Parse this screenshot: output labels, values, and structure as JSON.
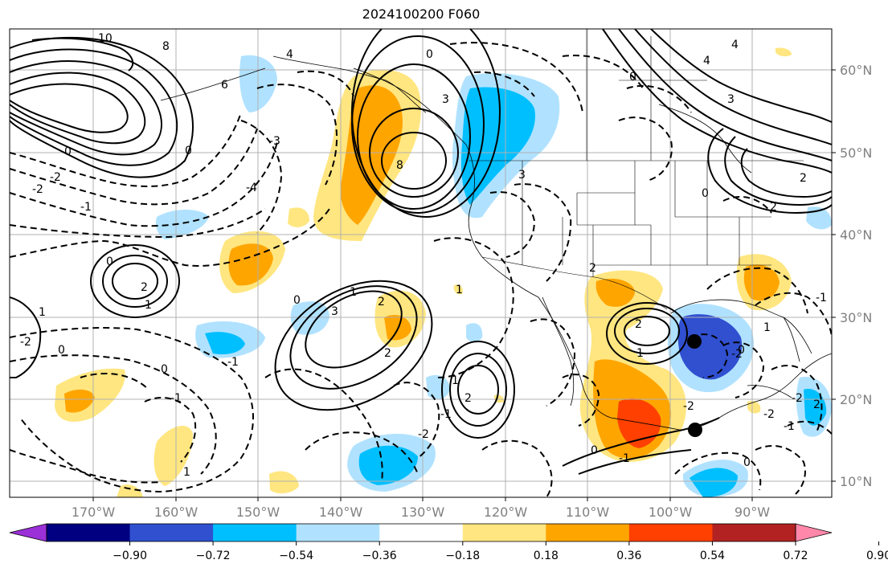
{
  "title": "2024100200 F060",
  "lat_labels": [
    "60°N",
    "50°N",
    "40°N",
    "30°N",
    "20°N",
    "10°N"
  ],
  "lon_labels": [
    "170°W",
    "160°W",
    "150°W",
    "140°W",
    "130°W",
    "120°W",
    "110°W",
    "100°W",
    "90°W"
  ],
  "colorbar": {
    "colors": [
      "#9b30d9",
      "#000080",
      "#3050d0",
      "#00bfff",
      "#b0e2ff",
      "#ffffff",
      "#ffe680",
      "#ffa500",
      "#ff4000",
      "#b22222",
      "#ff88aa"
    ],
    "tick_labels": [
      "−0.90",
      "−0.72",
      "−0.54",
      "−0.36",
      "−0.18",
      "0.18",
      "0.36",
      "0.54",
      "0.72",
      "0.90"
    ]
  },
  "contour_labels": [
    "10",
    "8",
    "6",
    "4",
    "4",
    "3",
    "2",
    "1",
    "0",
    "-1",
    "-2",
    "-3",
    "-4",
    "0",
    "3",
    "8",
    "2",
    "1",
    "0",
    "1",
    "2",
    "3",
    "2",
    "1",
    "0",
    "-1",
    "-2",
    "1",
    "2",
    "0",
    "-1",
    "-2",
    "2",
    "1",
    "0",
    "3",
    "2",
    "0",
    "4",
    "-2",
    "0",
    "-1",
    "0",
    "-1",
    "2",
    "-2",
    "1",
    "0",
    "-1",
    "2",
    "-1",
    "1",
    "0",
    "-2",
    "-2",
    "0",
    "-2"
  ],
  "markers": [
    "storm-center-1",
    "storm-center-2"
  ]
}
